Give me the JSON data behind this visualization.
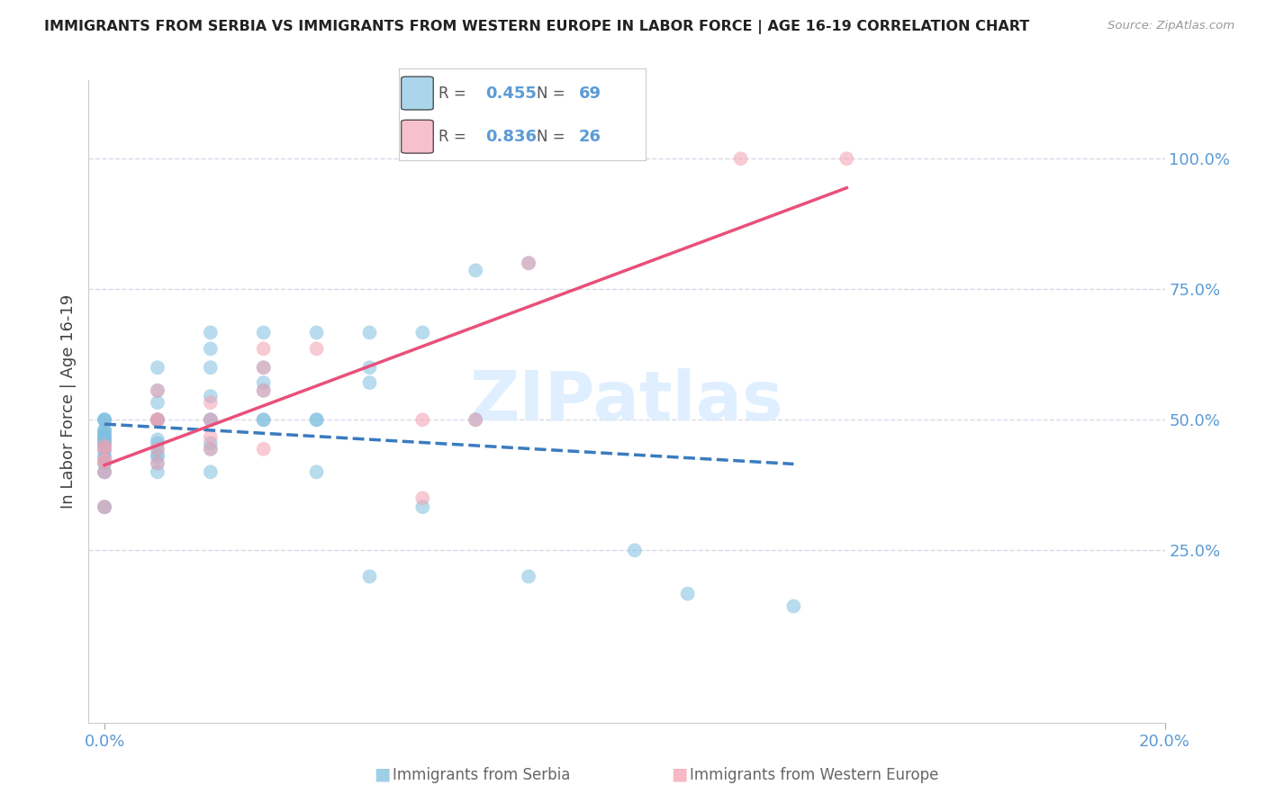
{
  "title": "IMMIGRANTS FROM SERBIA VS IMMIGRANTS FROM WESTERN EUROPE IN LABOR FORCE | AGE 16-19 CORRELATION CHART",
  "source": "Source: ZipAtlas.com",
  "ylabel": "In Labor Force | Age 16-19",
  "serbia_R": 0.455,
  "serbia_N": 69,
  "western_R": 0.836,
  "western_N": 26,
  "serbia_color": "#7fbfdf",
  "western_color": "#f4a0b0",
  "serbia_line_color": "#3a7bbf",
  "western_line_color": "#e8507a",
  "label_color": "#5b9bd5",
  "watermark_color": "#ddeeff",
  "bg_color": "#ffffff",
  "grid_color": "#d8d8e8",
  "serbia_points": [
    [
      0.0,
      0.333
    ],
    [
      0.0,
      0.333
    ],
    [
      0.0,
      0.4
    ],
    [
      0.0,
      0.4
    ],
    [
      0.0,
      0.417
    ],
    [
      0.0,
      0.417
    ],
    [
      0.0,
      0.429
    ],
    [
      0.0,
      0.429
    ],
    [
      0.0,
      0.44
    ],
    [
      0.0,
      0.444
    ],
    [
      0.0,
      0.45
    ],
    [
      0.0,
      0.455
    ],
    [
      0.0,
      0.455
    ],
    [
      0.0,
      0.46
    ],
    [
      0.0,
      0.462
    ],
    [
      0.0,
      0.467
    ],
    [
      0.0,
      0.467
    ],
    [
      0.0,
      0.471
    ],
    [
      0.0,
      0.476
    ],
    [
      0.0,
      0.48
    ],
    [
      0.0,
      0.48
    ],
    [
      0.0,
      0.5
    ],
    [
      0.0,
      0.5
    ],
    [
      0.0,
      0.5
    ],
    [
      0.001,
      0.4
    ],
    [
      0.001,
      0.417
    ],
    [
      0.001,
      0.429
    ],
    [
      0.001,
      0.433
    ],
    [
      0.001,
      0.444
    ],
    [
      0.001,
      0.455
    ],
    [
      0.001,
      0.462
    ],
    [
      0.001,
      0.5
    ],
    [
      0.001,
      0.5
    ],
    [
      0.001,
      0.5
    ],
    [
      0.001,
      0.533
    ],
    [
      0.001,
      0.556
    ],
    [
      0.001,
      0.6
    ],
    [
      0.002,
      0.4
    ],
    [
      0.002,
      0.444
    ],
    [
      0.002,
      0.455
    ],
    [
      0.002,
      0.5
    ],
    [
      0.002,
      0.5
    ],
    [
      0.002,
      0.545
    ],
    [
      0.002,
      0.6
    ],
    [
      0.002,
      0.636
    ],
    [
      0.002,
      0.667
    ],
    [
      0.003,
      0.5
    ],
    [
      0.003,
      0.5
    ],
    [
      0.003,
      0.556
    ],
    [
      0.003,
      0.571
    ],
    [
      0.003,
      0.6
    ],
    [
      0.003,
      0.667
    ],
    [
      0.004,
      0.4
    ],
    [
      0.004,
      0.5
    ],
    [
      0.004,
      0.5
    ],
    [
      0.004,
      0.667
    ],
    [
      0.005,
      0.2
    ],
    [
      0.005,
      0.571
    ],
    [
      0.005,
      0.6
    ],
    [
      0.005,
      0.667
    ],
    [
      0.006,
      0.333
    ],
    [
      0.006,
      0.667
    ],
    [
      0.007,
      0.5
    ],
    [
      0.007,
      0.786
    ],
    [
      0.008,
      0.2
    ],
    [
      0.008,
      0.8
    ],
    [
      0.01,
      0.25
    ],
    [
      0.011,
      0.167
    ],
    [
      0.013,
      0.143
    ]
  ],
  "western_points": [
    [
      0.0,
      0.333
    ],
    [
      0.0,
      0.4
    ],
    [
      0.0,
      0.421
    ],
    [
      0.0,
      0.421
    ],
    [
      0.0,
      0.444
    ],
    [
      0.0,
      0.45
    ],
    [
      0.001,
      0.417
    ],
    [
      0.001,
      0.444
    ],
    [
      0.001,
      0.5
    ],
    [
      0.001,
      0.5
    ],
    [
      0.001,
      0.556
    ],
    [
      0.002,
      0.444
    ],
    [
      0.002,
      0.467
    ],
    [
      0.002,
      0.5
    ],
    [
      0.002,
      0.533
    ],
    [
      0.003,
      0.444
    ],
    [
      0.003,
      0.556
    ],
    [
      0.003,
      0.6
    ],
    [
      0.003,
      0.636
    ],
    [
      0.004,
      0.636
    ],
    [
      0.006,
      0.35
    ],
    [
      0.006,
      0.5
    ],
    [
      0.007,
      0.5
    ],
    [
      0.008,
      0.8
    ],
    [
      0.012,
      1.0
    ],
    [
      0.014,
      1.0
    ]
  ],
  "ytick_vals": [
    0.25,
    0.5,
    0.75,
    1.0
  ],
  "ytick_labels": [
    "25.0%",
    "50.0%",
    "75.0%",
    "100.0%"
  ],
  "xlim": [
    -0.0003,
    0.02
  ],
  "ylim": [
    -0.08,
    1.15
  ]
}
